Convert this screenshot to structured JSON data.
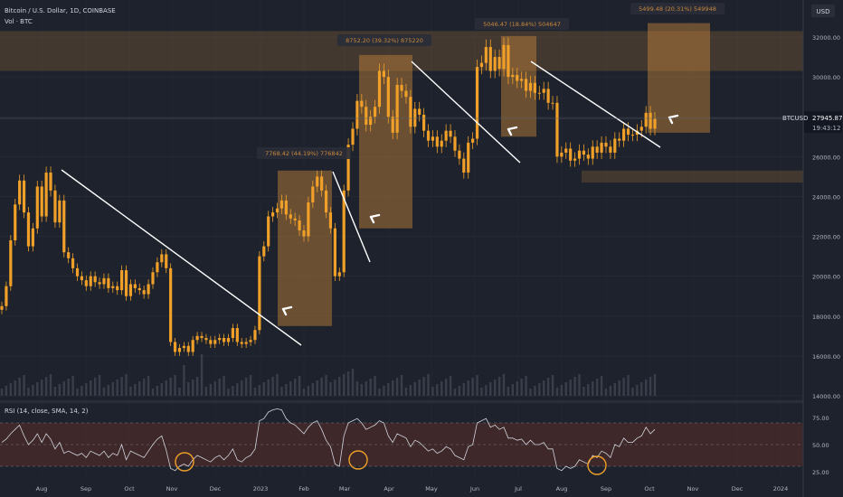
{
  "header": {
    "symbol_line": "Bitcoin / U.S. Dollar, 1D, COINBASE",
    "volume_line": "Vol · BTC",
    "currency": "USD"
  },
  "price_label": {
    "ticker": "BTCUSD",
    "price": "27945.87",
    "countdown": "19:43:12"
  },
  "rsi_label": "RSI (14, close, SMA, 14, 2)",
  "colors": {
    "background": "#1e222d",
    "candle": "#f0a028",
    "box": "#c8873a",
    "rsi_band": "#5a2e28",
    "trendline": "#ffffff"
  },
  "chart_data": [
    {
      "type": "candlestick",
      "y_axis": {
        "range": [
          14000,
          33000
        ],
        "ticks": [
          "32000.00",
          "30000.00",
          "28000.00",
          "26000.00",
          "24000.00",
          "22000.00",
          "20000.00",
          "18000.00",
          "16000.00",
          "14000.00"
        ]
      },
      "x_axis": {
        "ticks": [
          "Aug",
          "Sep",
          "Oct",
          "Nov",
          "Dec",
          "2023",
          "Feb",
          "Mar",
          "Apr",
          "May",
          "Jun",
          "Jul",
          "Aug",
          "Sep",
          "Oct",
          "Nov",
          "Dec",
          "2024"
        ]
      },
      "closes": [
        18500,
        19500,
        21800,
        23600,
        24800,
        23200,
        21500,
        22400,
        24500,
        23000,
        25200,
        24300,
        22700,
        23800,
        21200,
        20900,
        20400,
        20000,
        19800,
        19500,
        20000,
        19700,
        19600,
        19900,
        19400,
        19500,
        19300,
        20300,
        19000,
        19600,
        19400,
        19300,
        19100,
        19600,
        20200,
        20700,
        21100,
        20400,
        16700,
        16200,
        16400,
        16500,
        16200,
        16800,
        17000,
        16900,
        16800,
        16600,
        16800,
        16900,
        16700,
        16900,
        17400,
        16700,
        16600,
        16700,
        16800,
        17300,
        21000,
        21500,
        23000,
        23200,
        23400,
        23800,
        23100,
        22900,
        22800,
        22300,
        22000,
        23700,
        24500,
        25000,
        24300,
        23200,
        22400,
        20000,
        20200,
        24300,
        26600,
        27400,
        28800,
        28500,
        27600,
        28000,
        28500,
        30300,
        30000,
        28000,
        27200,
        29600,
        29300,
        29000,
        27500,
        28400,
        28100,
        27300,
        26800,
        27000,
        26500,
        26800,
        27300,
        27000,
        26300,
        25900,
        25200,
        26700,
        26900,
        30500,
        30700,
        31500,
        30300,
        31000,
        30400,
        31600,
        30000,
        30100,
        29800,
        29900,
        29300,
        29700,
        29200,
        29200,
        29400,
        28700,
        28700,
        26000,
        26200,
        26400,
        25800,
        25900,
        26300,
        26100,
        25900,
        26500,
        26200,
        26700,
        26500,
        26200,
        26900,
        26800,
        27400,
        27100,
        27100,
        27300,
        27500,
        28200,
        27400,
        27900
      ],
      "annotations": [
        {
          "label": "7768.42 (44.19%) 776842"
        },
        {
          "label": "8752.20 (39.32%) 875220"
        },
        {
          "label": "5046.47 (18.84%) 504647"
        },
        {
          "label": "5499.48 (20.31%) 549948"
        }
      ],
      "resistance_zone": [
        30300,
        32300
      ],
      "support_zone": [
        24700,
        25300
      ],
      "trendlines": 5
    },
    {
      "type": "line",
      "name": "RSI (14, close, SMA, 14, 2)",
      "y_axis": {
        "range": [
          20,
          85
        ],
        "ticks": [
          "75.00",
          "50.00",
          "25.00"
        ]
      },
      "band": [
        30,
        70
      ],
      "values": [
        52,
        55,
        60,
        64,
        68,
        58,
        50,
        54,
        60,
        52,
        60,
        55,
        46,
        52,
        42,
        44,
        42,
        40,
        42,
        38,
        44,
        42,
        40,
        44,
        38,
        42,
        40,
        50,
        36,
        44,
        42,
        40,
        38,
        44,
        50,
        55,
        58,
        45,
        28,
        26,
        30,
        32,
        30,
        36,
        40,
        38,
        36,
        34,
        38,
        40,
        36,
        40,
        46,
        36,
        34,
        38,
        40,
        46,
        72,
        74,
        80,
        82,
        83,
        82,
        74,
        70,
        68,
        64,
        60,
        66,
        70,
        72,
        64,
        54,
        48,
        32,
        30,
        58,
        70,
        72,
        74,
        70,
        64,
        66,
        68,
        72,
        70,
        58,
        52,
        60,
        58,
        56,
        48,
        54,
        52,
        48,
        44,
        46,
        42,
        44,
        48,
        46,
        40,
        38,
        36,
        48,
        50,
        70,
        72,
        74,
        66,
        68,
        64,
        66,
        56,
        56,
        54,
        55,
        50,
        54,
        50,
        50,
        52,
        46,
        46,
        28,
        26,
        30,
        28,
        30,
        36,
        34,
        32,
        40,
        38,
        44,
        42,
        38,
        50,
        48,
        56,
        52,
        52,
        56,
        58,
        66,
        60,
        64
      ]
    }
  ]
}
